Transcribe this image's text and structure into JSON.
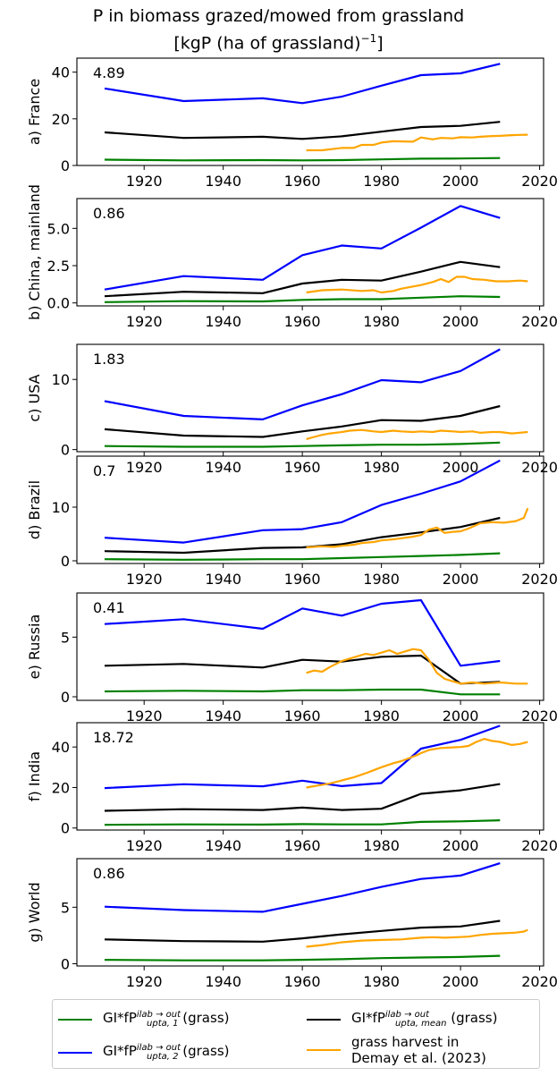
{
  "title": {
    "line1": "P in biomass grazed/mowed from grassland",
    "line2_prefix": "[kgP (ha of grassland)",
    "line2_sup": "−1",
    "line2_suffix": "]"
  },
  "colors": {
    "s1": "#008000",
    "smean": "#000000",
    "s2": "#0000ff",
    "demay": "#ffa500"
  },
  "legend": {
    "s1": {
      "prefix": "GI*fP",
      "sup": "ilab → out",
      "sub": "upta, 1",
      "suffix": " (grass)"
    },
    "s2": {
      "prefix": "GI*fP",
      "sup": "ilab → out",
      "sub": "upta, 2",
      "suffix": " (grass)"
    },
    "smean": {
      "prefix": "GI*fP",
      "sup": "ilab → out",
      "sub": "upta, mean",
      "suffix": " (grass)"
    },
    "demay": {
      "line1": "grass harvest in",
      "line2": "Demay et al. (2023)"
    }
  },
  "chart_data": {
    "type": "line",
    "x_ticks": [
      "1920",
      "1940",
      "1960",
      "1980",
      "2000",
      "2020"
    ],
    "xlim": [
      1903,
      2021
    ],
    "decades": [
      1910,
      1930,
      1950,
      1960,
      1970,
      1980,
      1990,
      2000,
      2010
    ],
    "panels": [
      {
        "ylabel": "a) France",
        "annotation": "4.89",
        "ylim": [
          0,
          46
        ],
        "yticks": [
          "0",
          "20",
          "40"
        ],
        "s1": [
          2.5,
          2.2,
          2.3,
          2.2,
          2.3,
          2.6,
          2.9,
          3.0,
          3.2
        ],
        "smean": [
          14.2,
          11.8,
          12.3,
          11.4,
          12.5,
          14.5,
          16.5,
          17.0,
          18.7
        ],
        "s2": [
          33.0,
          27.6,
          28.8,
          26.7,
          29.5,
          34.2,
          38.7,
          39.5,
          43.6
        ],
        "demay": {
          "x": [
            1961,
            1965,
            1970,
            1973,
            1975,
            1978,
            1980,
            1983,
            1985,
            1988,
            1990,
            1993,
            1995,
            1998,
            2000,
            2003,
            2005,
            2008,
            2010,
            2013,
            2015,
            2017
          ],
          "y": [
            6.5,
            6.5,
            7.5,
            7.5,
            8.8,
            8.8,
            9.8,
            10.4,
            10.3,
            10.2,
            12.0,
            11.2,
            11.8,
            11.6,
            12.1,
            12.0,
            12.3,
            12.6,
            12.7,
            13.0,
            13.1,
            13.2
          ]
        }
      },
      {
        "ylabel": "b) China, mainland",
        "annotation": "0.86",
        "ylim": [
          -0.2,
          7.0
        ],
        "yticks": [
          "0.0",
          "2.5",
          "5.0"
        ],
        "s1": [
          0.05,
          0.12,
          0.1,
          0.2,
          0.25,
          0.25,
          0.35,
          0.45,
          0.4
        ],
        "smean": [
          0.45,
          0.75,
          0.65,
          1.3,
          1.55,
          1.5,
          2.1,
          2.75,
          2.4
        ],
        "s2": [
          0.9,
          1.8,
          1.55,
          3.2,
          3.85,
          3.65,
          5.05,
          6.5,
          5.7
        ],
        "demay": {
          "x": [
            1961,
            1965,
            1970,
            1975,
            1978,
            1980,
            1983,
            1985,
            1988,
            1990,
            1993,
            1995,
            1997,
            1999,
            2001,
            2003,
            2006,
            2009,
            2012,
            2015,
            2017
          ],
          "y": [
            0.7,
            0.85,
            0.9,
            0.8,
            0.85,
            0.7,
            0.8,
            0.95,
            1.1,
            1.2,
            1.4,
            1.6,
            1.4,
            1.75,
            1.75,
            1.6,
            1.55,
            1.45,
            1.45,
            1.5,
            1.45
          ]
        }
      },
      {
        "ylabel": "c) USA",
        "annotation": "1.83",
        "ylim": [
          -0.3,
          15.0
        ],
        "yticks": [
          "0",
          "10"
        ],
        "s1": [
          0.5,
          0.4,
          0.4,
          0.5,
          0.6,
          0.7,
          0.7,
          0.8,
          1.0
        ],
        "smean": [
          2.9,
          2.0,
          1.8,
          2.6,
          3.3,
          4.2,
          4.1,
          4.8,
          6.2
        ],
        "s2": [
          6.9,
          4.8,
          4.3,
          6.3,
          7.9,
          9.9,
          9.6,
          11.2,
          14.3
        ],
        "demay": {
          "x": [
            1961,
            1963,
            1965,
            1967,
            1970,
            1972,
            1975,
            1978,
            1980,
            1983,
            1985,
            1988,
            1990,
            1993,
            1995,
            1998,
            2000,
            2003,
            2005,
            2008,
            2010,
            2013,
            2015,
            2017
          ],
          "y": [
            1.5,
            1.8,
            2.1,
            2.3,
            2.5,
            2.7,
            2.8,
            2.6,
            2.5,
            2.7,
            2.6,
            2.5,
            2.6,
            2.5,
            2.7,
            2.6,
            2.5,
            2.6,
            2.4,
            2.5,
            2.5,
            2.3,
            2.4,
            2.5
          ]
        }
      },
      {
        "ylabel": "d) Brazil",
        "annotation": "0.7",
        "ylim": [
          -0.5,
          19.5
        ],
        "yticks": [
          "0",
          "10"
        ],
        "s1": [
          0.3,
          0.2,
          0.3,
          0.3,
          0.5,
          0.7,
          0.9,
          1.1,
          1.4
        ],
        "smean": [
          1.8,
          1.5,
          2.4,
          2.5,
          3.1,
          4.4,
          5.3,
          6.3,
          8.0
        ],
        "s2": [
          4.3,
          3.4,
          5.7,
          5.9,
          7.2,
          10.4,
          12.5,
          14.8,
          18.7
        ],
        "demay": {
          "x": [
            1961,
            1965,
            1968,
            1970,
            1973,
            1975,
            1978,
            1980,
            1983,
            1985,
            1988,
            1990,
            1992,
            1994,
            1996,
            1998,
            2000,
            2002,
            2005,
            2008,
            2011,
            2014,
            2016,
            2017
          ],
          "y": [
            2.5,
            2.7,
            2.6,
            2.8,
            3.0,
            3.3,
            3.5,
            3.8,
            4.0,
            4.2,
            4.5,
            4.8,
            5.8,
            6.2,
            5.2,
            5.4,
            5.5,
            6.0,
            7.0,
            7.2,
            7.1,
            7.4,
            8.0,
            9.8
          ]
        }
      },
      {
        "ylabel": "e) Russia",
        "annotation": "0.41",
        "ylim": [
          -0.3,
          8.7
        ],
        "yticks": [
          "0",
          "5"
        ],
        "s1": [
          0.45,
          0.5,
          0.45,
          0.55,
          0.55,
          0.6,
          0.6,
          0.2,
          0.2
        ],
        "smean": [
          2.6,
          2.75,
          2.45,
          3.1,
          2.95,
          3.35,
          3.45,
          1.1,
          1.25
        ],
        "s2": [
          6.1,
          6.5,
          5.7,
          7.4,
          6.8,
          7.8,
          8.1,
          2.6,
          3.0
        ],
        "demay": {
          "x": [
            1961,
            1963,
            1965,
            1967,
            1970,
            1972,
            1974,
            1976,
            1978,
            1980,
            1982,
            1984,
            1986,
            1988,
            1990,
            1992,
            1994,
            1996,
            1998,
            2000,
            2003,
            2006,
            2010,
            2014,
            2017
          ],
          "y": [
            2.0,
            2.2,
            2.1,
            2.5,
            3.0,
            3.2,
            3.4,
            3.6,
            3.5,
            3.7,
            3.9,
            3.6,
            3.8,
            4.0,
            3.9,
            3.1,
            2.0,
            1.5,
            1.3,
            1.1,
            1.2,
            1.1,
            1.2,
            1.1,
            1.1
          ]
        }
      },
      {
        "ylabel": "f) India",
        "annotation": "18.72",
        "ylim": [
          -1.0,
          52.0
        ],
        "yticks": [
          "0",
          "20",
          "40"
        ],
        "s1": [
          1.6,
          1.8,
          1.7,
          1.9,
          1.8,
          1.8,
          3.0,
          3.3,
          3.8
        ],
        "smean": [
          8.5,
          9.3,
          8.9,
          10.1,
          8.9,
          9.5,
          16.9,
          18.6,
          21.7
        ],
        "s2": [
          19.7,
          21.6,
          20.6,
          23.4,
          20.7,
          22.2,
          39.2,
          43.5,
          50.5
        ],
        "demay": {
          "x": [
            1961,
            1964,
            1967,
            1970,
            1973,
            1976,
            1978,
            1980,
            1983,
            1985,
            1987,
            1989,
            1990,
            1992,
            1995,
            1998,
            2000,
            2002,
            2004,
            2006,
            2008,
            2010,
            2013,
            2015,
            2017
          ],
          "y": [
            20.0,
            21.0,
            22.0,
            23.5,
            25.0,
            27.0,
            28.5,
            30.0,
            32.0,
            33.0,
            34.5,
            36.0,
            37.0,
            38.5,
            39.5,
            39.8,
            40.0,
            40.5,
            42.5,
            44.0,
            43.0,
            42.5,
            41.0,
            41.5,
            42.5
          ]
        }
      },
      {
        "ylabel": "g) World",
        "annotation": "0.86",
        "ylim": [
          -0.2,
          9.3
        ],
        "yticks": [
          "0",
          "5"
        ],
        "s1": [
          0.35,
          0.3,
          0.3,
          0.35,
          0.4,
          0.5,
          0.55,
          0.6,
          0.7
        ],
        "smean": [
          2.15,
          2.0,
          1.95,
          2.25,
          2.6,
          2.9,
          3.2,
          3.3,
          3.8
        ],
        "s2": [
          5.05,
          4.75,
          4.6,
          5.3,
          6.0,
          6.8,
          7.5,
          7.8,
          8.9
        ],
        "demay": {
          "x": [
            1961,
            1965,
            1970,
            1975,
            1980,
            1985,
            1988,
            1990,
            1993,
            1996,
            1999,
            2002,
            2005,
            2008,
            2011,
            2014,
            2016,
            2017
          ],
          "y": [
            1.5,
            1.65,
            1.9,
            2.05,
            2.1,
            2.15,
            2.25,
            2.3,
            2.35,
            2.3,
            2.35,
            2.4,
            2.55,
            2.65,
            2.7,
            2.75,
            2.85,
            3.0
          ]
        }
      }
    ]
  }
}
